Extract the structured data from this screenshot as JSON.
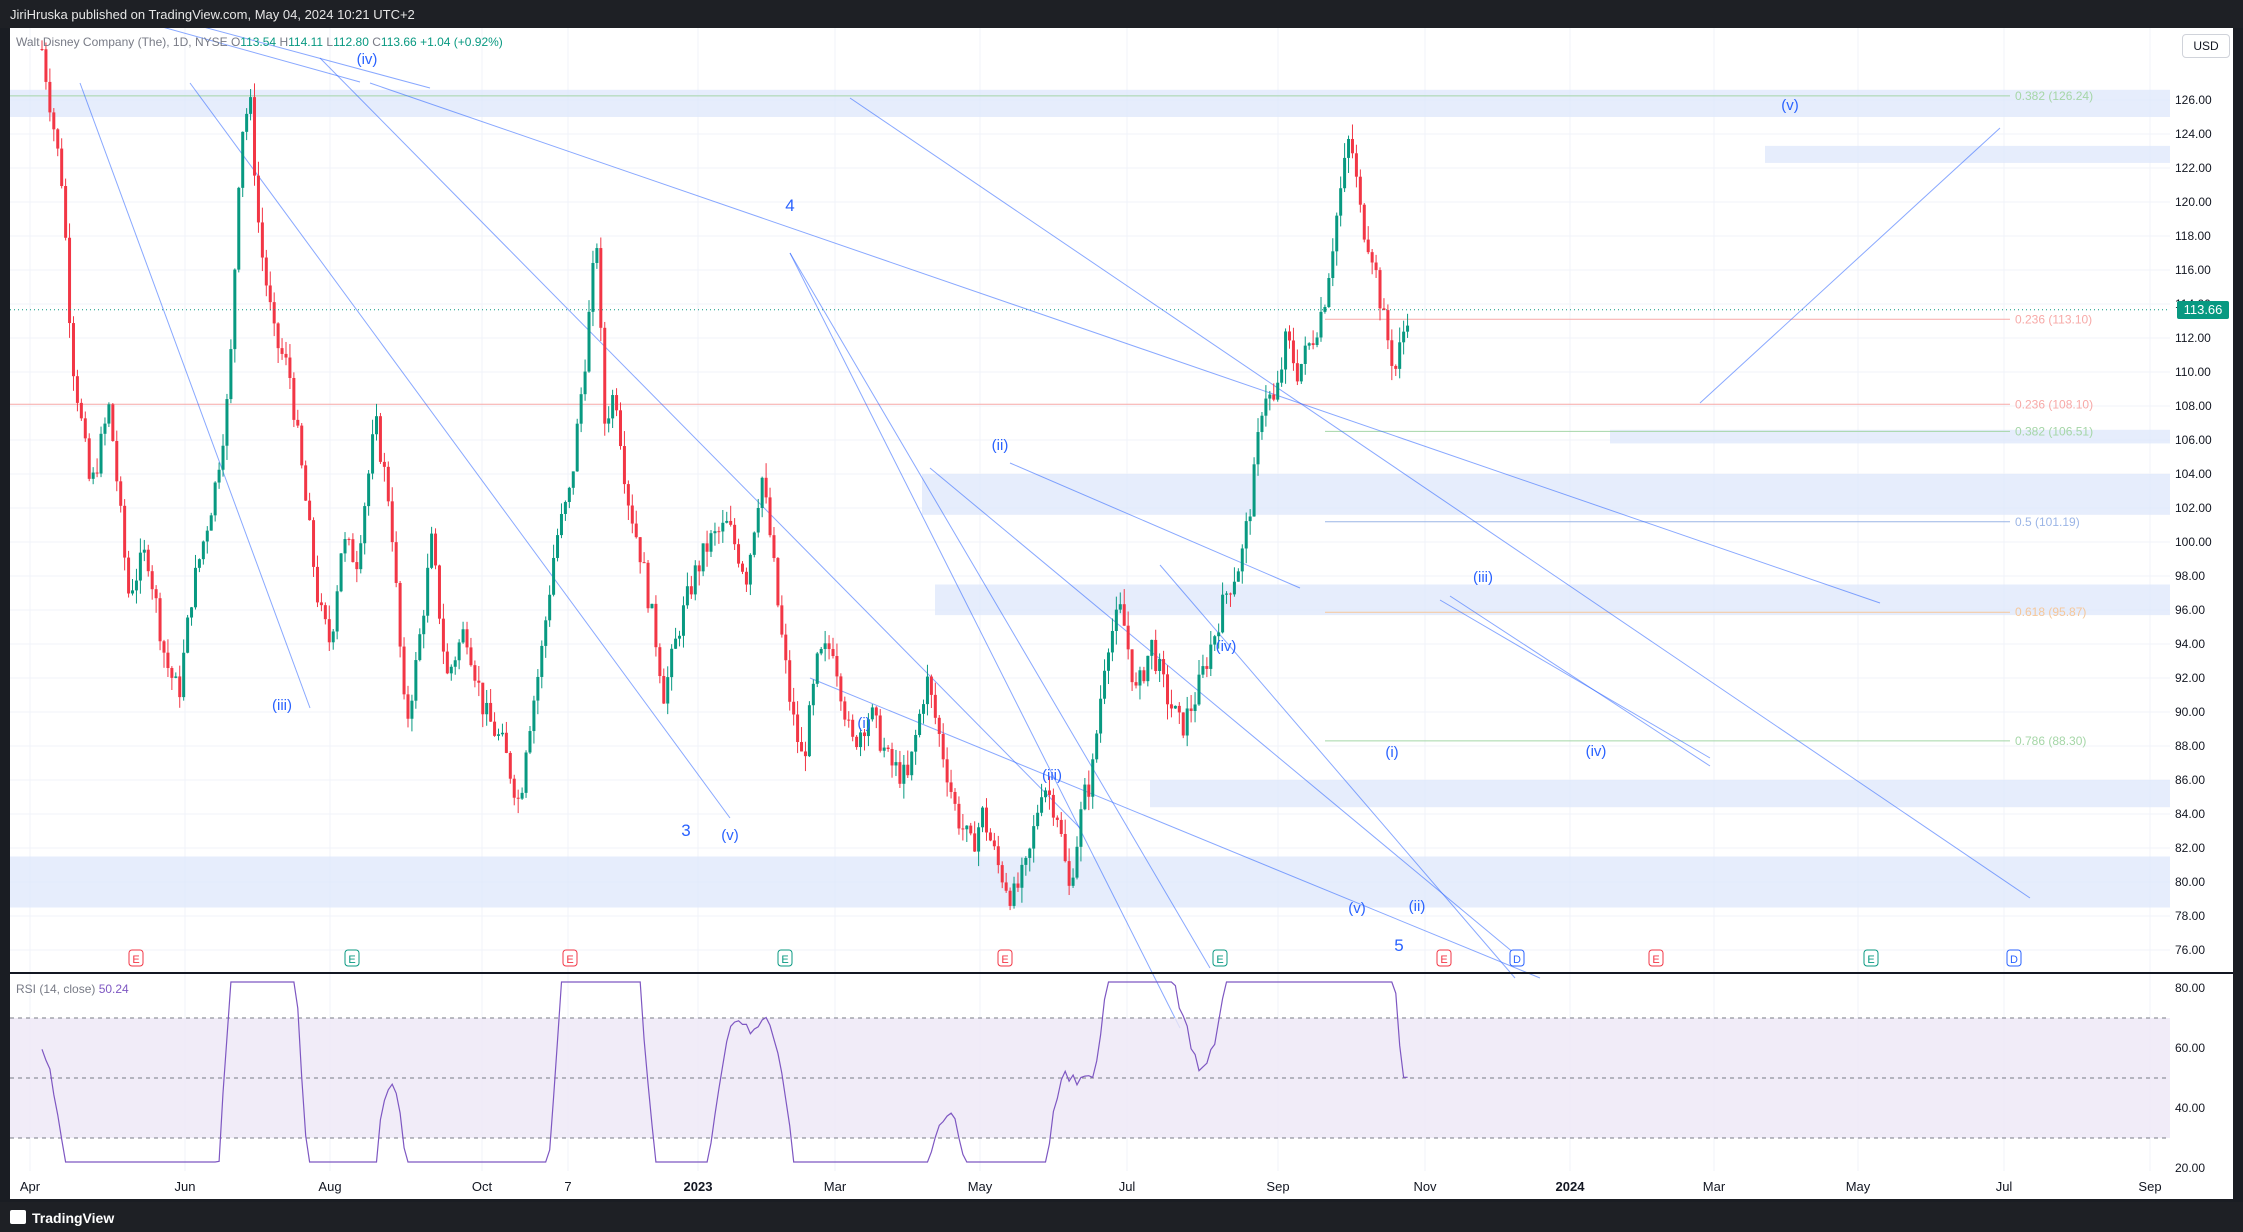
{
  "header": {
    "publisher": "JiriHruska published on TradingView.com, May 04, 2024 10:21 UTC+2"
  },
  "footer": {
    "brand": "TradingView"
  },
  "legend": {
    "symbol": "Walt Disney Company (The), 1D, NYSE",
    "o_label": "O",
    "o": "113.54",
    "h_label": "H",
    "h": "114.11",
    "l_label": "L",
    "l": "112.80",
    "c_label": "C",
    "c": "113.66",
    "change": "+1.04 (+0.92%)"
  },
  "currency": "USD",
  "last_price": "113.66",
  "rsi_legend": {
    "name": "RSI (14, close)",
    "value": "50.24"
  },
  "colors": {
    "up": "#089981",
    "down": "#f23645",
    "wave": "#2962ff",
    "rsi": "#7e57c2",
    "zone": "#dbe6fb"
  },
  "chart_data": {
    "type": "candlestick",
    "price_axis": {
      "min": 76,
      "max": 126,
      "ticks": [
        "126.00",
        "124.00",
        "122.00",
        "120.00",
        "118.00",
        "116.00",
        "114.00",
        "112.00",
        "110.00",
        "108.00",
        "106.00",
        "104.00",
        "102.00",
        "100.00",
        "98.00",
        "96.00",
        "94.00",
        "92.00",
        "90.00",
        "88.00",
        "86.00",
        "84.00",
        "82.00",
        "80.00",
        "78.00",
        "76.00"
      ]
    },
    "time_axis": {
      "labels": [
        "Apr",
        "Jun",
        "Aug",
        "Oct",
        "7",
        "2023",
        "Mar",
        "May",
        "Jul",
        "Sep",
        "Nov",
        "2024",
        "Mar",
        "May",
        "Jul",
        "Sep"
      ]
    },
    "price_path": [
      [
        0.0,
        129
      ],
      [
        0.55,
        121
      ],
      [
        0.8,
        111
      ],
      [
        1.3,
        103
      ],
      [
        1.8,
        108
      ],
      [
        2.3,
        97
      ],
      [
        2.8,
        99.5
      ],
      [
        3.3,
        93
      ],
      [
        3.65,
        91
      ],
      [
        4.0,
        97
      ],
      [
        4.6,
        103
      ],
      [
        5.0,
        109
      ],
      [
        5.3,
        124
      ],
      [
        5.55,
        126
      ],
      [
        5.8,
        118
      ],
      [
        6.2,
        112
      ],
      [
        6.6,
        110
      ],
      [
        7.0,
        103
      ],
      [
        7.4,
        96
      ],
      [
        7.7,
        94
      ],
      [
        8.0,
        100
      ],
      [
        8.4,
        99
      ],
      [
        8.9,
        107
      ],
      [
        9.3,
        102
      ],
      [
        9.7,
        89
      ],
      [
        10.0,
        93
      ],
      [
        10.4,
        100
      ],
      [
        10.8,
        92
      ],
      [
        11.3,
        95
      ],
      [
        11.8,
        90
      ],
      [
        12.3,
        88
      ],
      [
        12.75,
        84.5
      ],
      [
        12.9,
        88
      ],
      [
        13.3,
        93
      ],
      [
        13.7,
        100
      ],
      [
        14.1,
        103
      ],
      [
        14.5,
        111
      ],
      [
        14.8,
        118
      ],
      [
        15.0,
        107
      ],
      [
        15.3,
        109
      ],
      [
        15.6,
        103
      ],
      [
        16.0,
        99
      ],
      [
        16.4,
        94
      ],
      [
        16.6,
        91
      ],
      [
        17.0,
        95
      ],
      [
        17.4,
        98
      ],
      [
        17.8,
        100
      ],
      [
        18.3,
        101
      ],
      [
        18.8,
        98
      ],
      [
        19.2,
        104
      ],
      [
        19.45,
        100
      ],
      [
        19.7,
        95
      ],
      [
        20.0,
        90
      ],
      [
        20.3,
        87
      ],
      [
        20.7,
        93
      ],
      [
        21.1,
        94
      ],
      [
        21.6,
        88
      ],
      [
        22.1,
        90
      ],
      [
        22.6,
        87
      ],
      [
        23.1,
        86
      ],
      [
        23.6,
        92
      ],
      [
        24.0,
        88
      ],
      [
        24.4,
        84
      ],
      [
        24.8,
        82
      ],
      [
        25.1,
        84
      ],
      [
        25.5,
        81
      ],
      [
        25.9,
        79
      ],
      [
        26.3,
        81
      ],
      [
        26.7,
        86
      ],
      [
        27.1,
        84
      ],
      [
        27.4,
        79.5
      ],
      [
        27.8,
        85
      ],
      [
        28.0,
        86
      ],
      [
        28.4,
        94
      ],
      [
        28.8,
        96
      ],
      [
        29.2,
        91
      ],
      [
        29.6,
        94
      ],
      [
        30.0,
        91
      ],
      [
        30.4,
        89
      ],
      [
        30.8,
        91
      ],
      [
        31.2,
        94
      ],
      [
        31.6,
        97
      ],
      [
        32.0,
        99
      ],
      [
        32.3,
        103
      ],
      [
        32.6,
        109
      ],
      [
        32.9,
        108
      ],
      [
        33.2,
        112
      ],
      [
        33.5,
        110
      ],
      [
        33.9,
        112
      ],
      [
        34.2,
        114
      ],
      [
        34.6,
        120
      ],
      [
        34.9,
        124
      ],
      [
        35.2,
        119
      ],
      [
        35.5,
        117
      ],
      [
        35.8,
        113
      ],
      [
        36.1,
        110
      ],
      [
        36.45,
        113.66
      ]
    ],
    "rsi": {
      "levels": [
        "80.00",
        "60.00",
        "40.00",
        "20.00"
      ],
      "last": 50.24,
      "overbought": 70,
      "oversold": 30
    },
    "fib_levels": [
      "0.382 (126.24)",
      "0.236 (113.10)",
      "0.236 (108.10)",
      "0.382 (106.51)",
      "0.5 (101.19)",
      "0.618 (95.87)",
      "0.786 (88.30)"
    ],
    "wave_labels": [
      "(iv)",
      "(iii)",
      "3",
      "(v)",
      "4",
      "(ii)",
      "(i)",
      "(iii)",
      "(iv)",
      "(v)",
      "5",
      "(i)",
      "(ii)",
      "(iii)",
      "(iv)",
      "(v)"
    ],
    "event_markers": [
      "E",
      "E",
      "E",
      "E",
      "E",
      "E",
      "E",
      "D",
      "E",
      "E",
      "D"
    ]
  }
}
